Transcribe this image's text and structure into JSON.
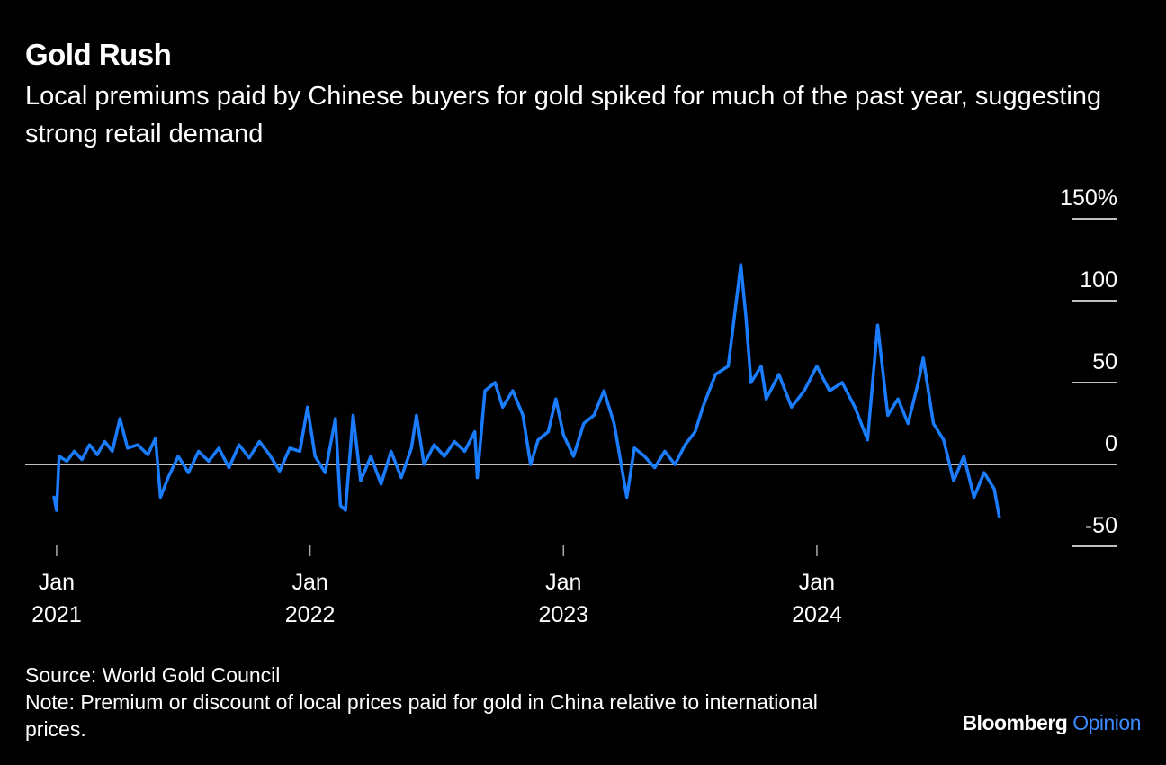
{
  "chart_data": {
    "type": "line",
    "title": "Gold Rush",
    "subtitle": "Local premiums paid by Chinese buyers for gold spiked for much of the past year, suggesting strong retail demand",
    "source": "Source: World Gold Council",
    "note": "Note: Premium or discount of local prices paid for gold in China relative to international prices.",
    "brand": "Bloomberg",
    "brand_suffix": "Opinion",
    "color": "#1a7cff",
    "xlim": [
      2020.876,
      2025.186
    ],
    "xticks": [
      {
        "value": 2021,
        "label": "Jan 2021"
      },
      {
        "value": 2022,
        "label": "Jan 2022"
      },
      {
        "value": 2023,
        "label": "Jan 2023"
      },
      {
        "value": 2024,
        "label": "Jan 2024"
      }
    ],
    "ylim": [
      -50,
      150
    ],
    "yticks": [
      {
        "value": 150,
        "label": "150%"
      },
      100,
      50,
      0,
      -50
    ],
    "x": [
      2020.99,
      2021.0,
      2021.01,
      2021.04,
      2021.07,
      2021.1,
      2021.13,
      2021.16,
      2021.19,
      2021.22,
      2021.25,
      2021.28,
      2021.32,
      2021.36,
      2021.39,
      2021.41,
      2021.44,
      2021.48,
      2021.52,
      2021.56,
      2021.6,
      2021.64,
      2021.68,
      2021.72,
      2021.76,
      2021.8,
      2021.84,
      2021.88,
      2021.92,
      2021.96,
      2021.99,
      2022.02,
      2022.06,
      2022.1,
      2022.12,
      2022.14,
      2022.17,
      2022.2,
      2022.24,
      2022.28,
      2022.32,
      2022.36,
      2022.4,
      2022.42,
      2022.45,
      2022.49,
      2022.53,
      2022.57,
      2022.61,
      2022.65,
      2022.66,
      2022.69,
      2022.73,
      2022.76,
      2022.8,
      2022.84,
      2022.87,
      2022.9,
      2022.94,
      2022.97,
      2023.0,
      2023.04,
      2023.08,
      2023.12,
      2023.16,
      2023.2,
      2023.25,
      2023.28,
      2023.32,
      2023.36,
      2023.4,
      2023.44,
      2023.48,
      2023.52,
      2023.55,
      2023.6,
      2023.65,
      2023.7,
      2023.72,
      2023.74,
      2023.78,
      2023.8,
      2023.85,
      2023.9,
      2023.95,
      2024.0,
      2024.05,
      2024.1,
      2024.15,
      2024.2,
      2024.24,
      2024.28,
      2024.32,
      2024.36,
      2024.4,
      2024.42,
      2024.46,
      2024.5,
      2024.54,
      2024.58,
      2024.62,
      2024.66,
      2024.7,
      2024.72
    ],
    "values": [
      -20,
      -28,
      5,
      2,
      8,
      3,
      12,
      6,
      14,
      8,
      28,
      10,
      12,
      6,
      16,
      -20,
      -8,
      5,
      -5,
      8,
      2,
      10,
      -2,
      12,
      4,
      14,
      6,
      -4,
      10,
      8,
      35,
      5,
      -5,
      28,
      -25,
      -28,
      30,
      -10,
      5,
      -12,
      8,
      -8,
      10,
      30,
      0,
      12,
      5,
      14,
      8,
      20,
      -8,
      45,
      50,
      35,
      45,
      30,
      0,
      15,
      20,
      40,
      18,
      5,
      25,
      30,
      45,
      25,
      -20,
      10,
      5,
      -2,
      8,
      0,
      12,
      20,
      35,
      55,
      60,
      122,
      90,
      50,
      60,
      40,
      55,
      35,
      45,
      60,
      45,
      50,
      35,
      15,
      85,
      30,
      40,
      25,
      50,
      65,
      25,
      15,
      -10,
      5,
      -20,
      -5,
      -15,
      -32
    ]
  }
}
